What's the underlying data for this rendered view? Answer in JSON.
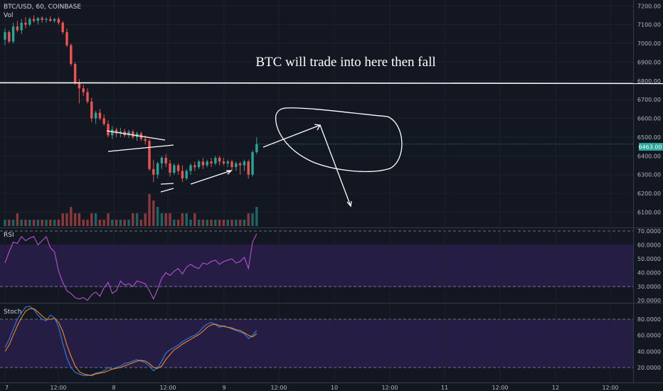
{
  "header": {
    "symbol": "BTC/USD, 60, COINBASE",
    "vol_label": "Vol"
  },
  "annotation": "BTC will trade into here then fall",
  "colors": {
    "background": "#131722",
    "up": "#26a69a",
    "down": "#ef5350",
    "rsi": "#b452d4",
    "stoch_k": "#2f7fe8",
    "stoch_d": "#f08a24",
    "last_price_tag": "#26a69a",
    "indicator_band": "#2a1e4a"
  },
  "price_axis": {
    "ticks": [
      "7200.00",
      "7100.00",
      "7000.00",
      "6900.00",
      "6800.00",
      "6700.00",
      "6600.00",
      "6500.00",
      "6400.00",
      "6300.00",
      "6200.00",
      "6100.00"
    ],
    "last_price": "6463.00"
  },
  "time_axis": {
    "ticks": [
      "7",
      "12:00",
      "8",
      "12:00",
      "9",
      "12:00",
      "10",
      "12:00",
      "11",
      "12:00",
      "12",
      "12:00"
    ]
  },
  "rsi_panel": {
    "label": "RSI",
    "ticks": [
      "70.0000",
      "60.0000",
      "50.0000",
      "40.0000",
      "30.0000",
      "20.0000"
    ]
  },
  "stoch_panel": {
    "label": "Stoch",
    "ticks": [
      "80.0000",
      "60.0000",
      "40.0000",
      "20.0000"
    ]
  },
  "chart_data": {
    "type": "candlestick",
    "ylim": [
      6060,
      7220
    ],
    "horizontal_line": 6790,
    "last_price": 6463,
    "candles": [
      [
        7020,
        7080,
        6990,
        7060
      ],
      [
        7060,
        7070,
        7000,
        7010
      ],
      [
        7010,
        7110,
        7000,
        7090
      ],
      [
        7090,
        7120,
        7060,
        7070
      ],
      [
        7070,
        7130,
        7050,
        7110
      ],
      [
        7110,
        7140,
        7080,
        7100
      ],
      [
        7100,
        7140,
        7090,
        7130
      ],
      [
        7130,
        7150,
        7110,
        7120
      ],
      [
        7120,
        7140,
        7100,
        7135
      ],
      [
        7135,
        7145,
        7110,
        7125
      ],
      [
        7125,
        7140,
        7110,
        7130
      ],
      [
        7130,
        7145,
        7115,
        7120
      ],
      [
        7120,
        7135,
        7110,
        7130
      ],
      [
        7130,
        7140,
        7100,
        7110
      ],
      [
        7110,
        7120,
        7050,
        7060
      ],
      [
        7060,
        7080,
        6980,
        6990
      ],
      [
        6990,
        7000,
        6880,
        6890
      ],
      [
        6890,
        6900,
        6780,
        6790
      ],
      [
        6790,
        6810,
        6680,
        6760
      ],
      [
        6760,
        6780,
        6720,
        6740
      ],
      [
        6740,
        6760,
        6680,
        6690
      ],
      [
        6690,
        6710,
        6580,
        6600
      ],
      [
        6600,
        6640,
        6570,
        6630
      ],
      [
        6630,
        6650,
        6590,
        6600
      ],
      [
        6600,
        6620,
        6560,
        6570
      ],
      [
        6570,
        6590,
        6500,
        6510
      ],
      [
        6510,
        6560,
        6490,
        6540
      ],
      [
        6540,
        6550,
        6500,
        6520
      ],
      [
        6520,
        6550,
        6500,
        6530
      ],
      [
        6530,
        6545,
        6500,
        6510
      ],
      [
        6510,
        6540,
        6495,
        6530
      ],
      [
        6530,
        6540,
        6490,
        6500
      ],
      [
        6500,
        6530,
        6480,
        6520
      ],
      [
        6520,
        6530,
        6480,
        6490
      ],
      [
        6490,
        6510,
        6460,
        6480
      ],
      [
        6480,
        6490,
        6320,
        6330
      ],
      [
        6330,
        6380,
        6260,
        6300
      ],
      [
        6300,
        6370,
        6280,
        6360
      ],
      [
        6360,
        6400,
        6330,
        6390
      ],
      [
        6390,
        6410,
        6340,
        6360
      ],
      [
        6360,
        6380,
        6290,
        6310
      ],
      [
        6310,
        6360,
        6300,
        6350
      ],
      [
        6350,
        6360,
        6300,
        6320
      ],
      [
        6320,
        6350,
        6260,
        6280
      ],
      [
        6280,
        6330,
        6270,
        6320
      ],
      [
        6320,
        6360,
        6300,
        6350
      ],
      [
        6350,
        6370,
        6320,
        6340
      ],
      [
        6340,
        6380,
        6330,
        6370
      ],
      [
        6370,
        6390,
        6330,
        6350
      ],
      [
        6350,
        6380,
        6340,
        6370
      ],
      [
        6370,
        6390,
        6340,
        6360
      ],
      [
        6360,
        6400,
        6350,
        6390
      ],
      [
        6390,
        6400,
        6350,
        6370
      ],
      [
        6370,
        6390,
        6350,
        6360
      ],
      [
        6360,
        6380,
        6340,
        6370
      ],
      [
        6370,
        6380,
        6320,
        6340
      ],
      [
        6340,
        6370,
        6320,
        6360
      ],
      [
        6360,
        6370,
        6300,
        6350
      ],
      [
        6350,
        6380,
        6320,
        6370
      ],
      [
        6370,
        6380,
        6280,
        6300
      ],
      [
        6300,
        6430,
        6290,
        6420
      ],
      [
        6420,
        6500,
        6410,
        6463
      ]
    ],
    "volume": [
      1,
      1,
      1,
      2,
      1,
      1,
      1,
      1,
      1,
      1,
      1,
      1,
      1,
      1,
      2,
      2,
      3,
      2,
      2,
      1,
      1,
      2,
      2,
      1,
      1,
      2,
      1,
      1,
      1,
      1,
      1,
      2,
      2,
      1,
      2,
      5,
      4,
      3,
      2,
      2,
      2,
      1,
      1,
      2,
      2,
      1,
      2,
      1,
      1,
      1,
      1,
      1,
      1,
      1,
      1,
      1,
      1,
      1,
      1,
      2,
      2,
      3
    ],
    "rsi": [
      47,
      55,
      62,
      61,
      66,
      63,
      65,
      66,
      60,
      63,
      66,
      58,
      55,
      41,
      33,
      27,
      25,
      22,
      21,
      22,
      20,
      24,
      26,
      23,
      29,
      33,
      25,
      27,
      34,
      31,
      32,
      30,
      34,
      33,
      32,
      27,
      21,
      28,
      36,
      40,
      38,
      41,
      43,
      39,
      44,
      46,
      44,
      43,
      47,
      46,
      48,
      49,
      46,
      48,
      49,
      50,
      47,
      48,
      51,
      43,
      62,
      68
    ],
    "stoch_k": [
      45,
      55,
      68,
      80,
      88,
      95,
      96,
      92,
      85,
      80,
      78,
      85,
      82,
      70,
      50,
      32,
      20,
      14,
      12,
      10,
      10,
      11,
      13,
      14,
      16,
      20,
      18,
      20,
      22,
      25,
      26,
      28,
      30,
      28,
      26,
      22,
      16,
      20,
      28,
      38,
      42,
      45,
      48,
      52,
      55,
      58,
      60,
      64,
      70,
      74,
      76,
      73,
      70,
      72,
      70,
      68,
      66,
      64,
      62,
      56,
      60,
      66
    ],
    "stoch_d": [
      40,
      48,
      60,
      72,
      82,
      90,
      93,
      93,
      89,
      84,
      80,
      80,
      81,
      76,
      65,
      48,
      34,
      22,
      15,
      12,
      11,
      10,
      12,
      13,
      14,
      16,
      18,
      19,
      20,
      22,
      24,
      26,
      28,
      29,
      28,
      25,
      20,
      19,
      22,
      30,
      36,
      42,
      45,
      49,
      52,
      55,
      58,
      61,
      65,
      70,
      73,
      74,
      72,
      71,
      70,
      69,
      67,
      66,
      63,
      60,
      58,
      62
    ]
  }
}
